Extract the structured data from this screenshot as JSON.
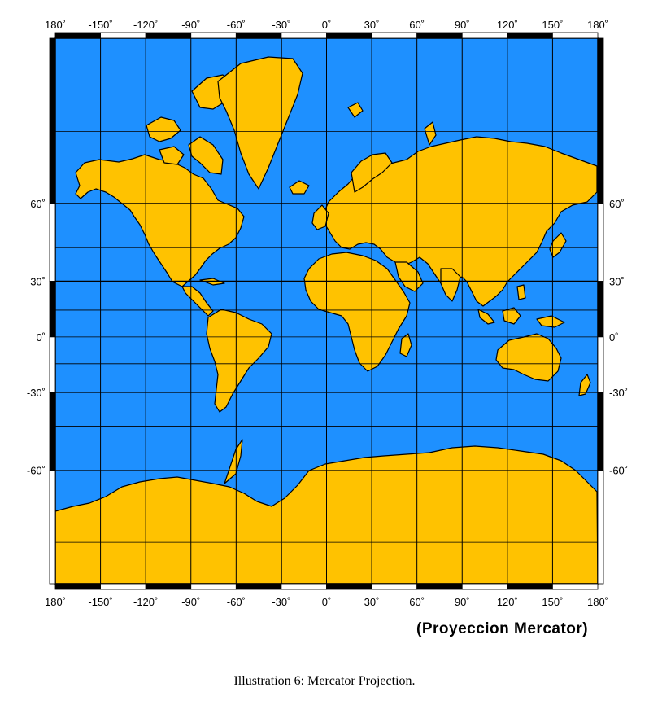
{
  "map": {
    "projection_label": "(Proyeccion Mercator)",
    "caption": "Illustration 6: Mercator Projection.",
    "colors": {
      "ocean": "#1E90FF",
      "land": "#FFC200",
      "grid": "#000000",
      "frame": "#000000"
    },
    "longitude_labels": [
      "180˚",
      "-150˚",
      "-120˚",
      "-90˚",
      "-60˚",
      "-30˚",
      "0˚",
      "30˚",
      "60˚",
      "90˚",
      "120˚",
      "150˚",
      "180˚"
    ],
    "latitude_labels": [
      "60˚",
      "30˚",
      "0˚",
      "-30˚",
      "-60˚"
    ],
    "longitude_values": [
      -180,
      -150,
      -120,
      -90,
      -60,
      -30,
      0,
      30,
      60,
      90,
      120,
      150,
      180
    ],
    "latitude_values": [
      60,
      30,
      0,
      -30,
      -60
    ]
  }
}
